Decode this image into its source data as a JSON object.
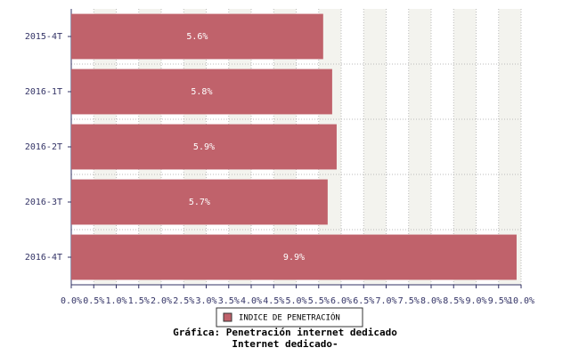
{
  "chart_data": {
    "type": "hbar",
    "title": "Gráfica: Penetración internet dedicado",
    "subtitle": "Internet dedicado-",
    "categories": [
      "2015-4T",
      "2016-1T",
      "2016-2T",
      "2016-3T",
      "2016-4T"
    ],
    "series": [
      {
        "name": "INDICE DE PENETRACIÓN",
        "color": "#c0626b",
        "values": [
          5.6,
          5.8,
          5.9,
          5.7,
          9.9
        ],
        "value_labels": [
          "5.6%",
          "5.8%",
          "5.9%",
          "5.7%",
          "9.9%"
        ]
      }
    ],
    "xlim": [
      0,
      10
    ],
    "xticks": [
      {
        "value": 0,
        "label": "0.0%"
      },
      {
        "value": 0.5,
        "label": "0.5%"
      },
      {
        "value": 1,
        "label": "1.0%"
      },
      {
        "value": 1.5,
        "label": "1.5%"
      },
      {
        "value": 2,
        "label": "2.0%"
      },
      {
        "value": 2.5,
        "label": "2.5%"
      },
      {
        "value": 3,
        "label": "3.0%"
      },
      {
        "value": 3.5,
        "label": "3.5%"
      },
      {
        "value": 4,
        "label": "4.0%"
      },
      {
        "value": 4.5,
        "label": "4.5%"
      },
      {
        "value": 5,
        "label": "5.0%"
      },
      {
        "value": 5.5,
        "label": "5.5%"
      },
      {
        "value": 6,
        "label": "6.0%"
      },
      {
        "value": 6.5,
        "label": "6.5%"
      },
      {
        "value": 7,
        "label": "7.0%"
      },
      {
        "value": 7.5,
        "label": "7.5%"
      },
      {
        "value": 8,
        "label": "8.0%"
      },
      {
        "value": 8.5,
        "label": "8.5%"
      },
      {
        "value": 9,
        "label": "9.0%"
      },
      {
        "value": 9.5,
        "label": "9.5%"
      },
      {
        "value": 10,
        "label": "10.0%"
      }
    ],
    "grid": true,
    "legend": "bottom"
  }
}
